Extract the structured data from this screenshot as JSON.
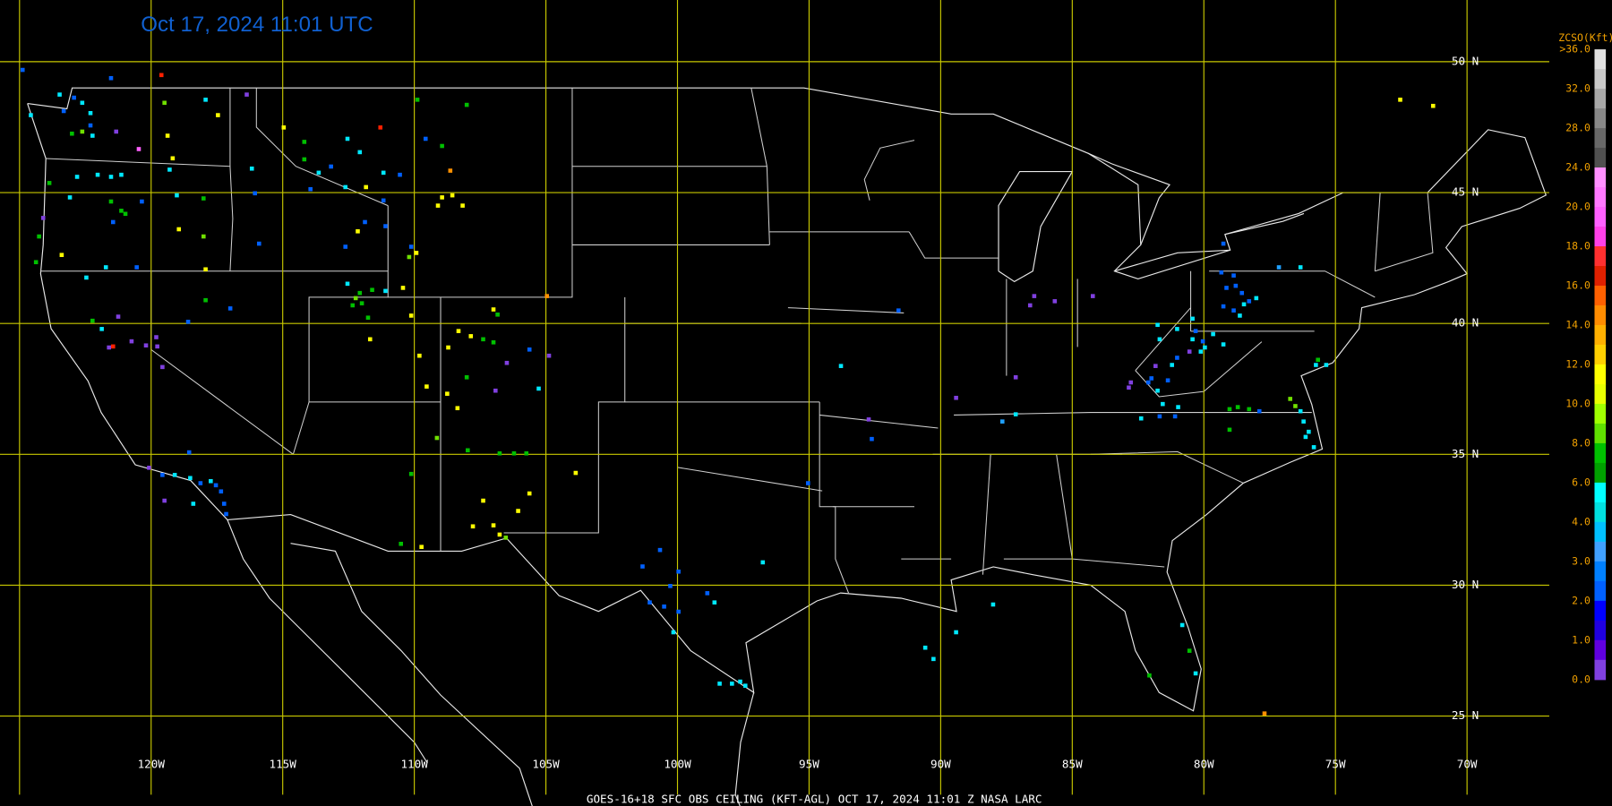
{
  "title": "Oct 17, 2024 11:01 UTC",
  "footer": "GOES-16+18  SFC OBS CEILING (KFT-AGL)   OCT 17, 2024 11:01 Z   NASA LARC",
  "lat_labels": [
    "50 N",
    "45 N",
    "40 N",
    "35 N",
    "30 N",
    "25 N"
  ],
  "lon_labels": [
    "120W",
    "115W",
    "110W",
    "105W",
    "100W",
    "95W",
    "90W",
    "85W",
    "80W",
    "75W",
    "70W"
  ],
  "legend": {
    "title": "ZCSO(Kft)",
    "labels": [
      ">36.0",
      "32.0",
      "28.0",
      "24.0",
      "20.0",
      "18.0",
      "16.0",
      "14.0",
      "12.0",
      "10.0",
      "8.0",
      "6.0",
      "4.0",
      "3.0",
      "2.0",
      "1.0",
      "0.0"
    ]
  }
}
